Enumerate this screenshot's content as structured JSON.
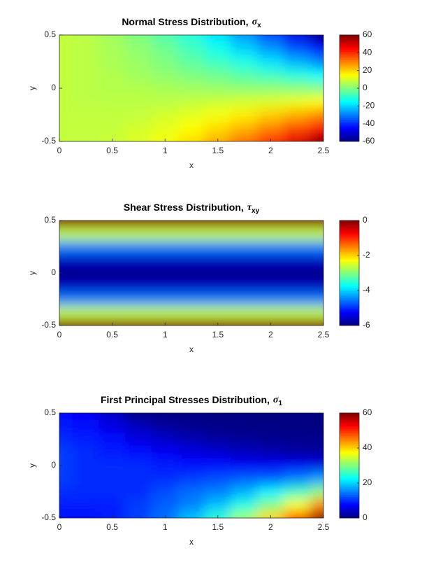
{
  "chart_data": [
    {
      "type": "heatmap",
      "title": "Normal Stress Distribution,",
      "title_symbol": "σ",
      "title_subscript": "x",
      "xlabel": "x",
      "ylabel": "y",
      "colormap": "jet",
      "x": [
        0,
        0.25,
        0.5,
        0.75,
        1,
        1.25,
        1.5,
        1.75,
        2,
        2.25,
        2.5
      ],
      "y": [
        -0.5,
        -0.375,
        -0.25,
        -0.125,
        0,
        0.125,
        0.25,
        0.375,
        0.5
      ],
      "z": [
        [
          8,
          8,
          9,
          11,
          14,
          19,
          25,
          32,
          40,
          49,
          60
        ],
        [
          8,
          8,
          8,
          10,
          12,
          15,
          19,
          24,
          30,
          37,
          45
        ],
        [
          8,
          8,
          8,
          8,
          10,
          12,
          14,
          17,
          21,
          25,
          30
        ],
        [
          8,
          7,
          7,
          7,
          7,
          8,
          9,
          10,
          11,
          13,
          15
        ],
        [
          8,
          7,
          6,
          6,
          5,
          4,
          3,
          2,
          2,
          1,
          0
        ],
        [
          8,
          7,
          6,
          4,
          2,
          0,
          -2,
          -5,
          -8,
          -11,
          -15
        ],
        [
          8,
          7,
          5,
          3,
          0,
          -4,
          -8,
          -12,
          -18,
          -24,
          -30
        ],
        [
          8,
          7,
          5,
          2,
          -2,
          -7,
          -13,
          -20,
          -27,
          -36,
          -45
        ],
        [
          8,
          7,
          4,
          0,
          -5,
          -11,
          -18,
          -27,
          -37,
          -48,
          -60
        ]
      ],
      "xlim": [
        0,
        2.5
      ],
      "ylim": [
        -0.5,
        0.5
      ],
      "xticks": [
        0,
        0.5,
        1,
        1.5,
        2,
        2.5
      ],
      "yticks": [
        -0.5,
        0,
        0.5
      ],
      "clim": [
        -60,
        60
      ],
      "cticks": [
        -60,
        -40,
        -20,
        0,
        20,
        40,
        60
      ]
    },
    {
      "type": "heatmap",
      "title": "Shear Stress Distribution,",
      "title_symbol": "τ",
      "title_subscript": "xy",
      "xlabel": "x",
      "ylabel": "y",
      "colormap": "jet",
      "x": [
        0,
        0.25,
        0.5,
        0.75,
        1,
        1.25,
        1.5,
        1.75,
        2,
        2.25,
        2.5
      ],
      "y": [
        -0.5,
        -0.375,
        -0.25,
        -0.125,
        0,
        0.125,
        0.25,
        0.375,
        0.5
      ],
      "z": [
        [
          0,
          0,
          0,
          0,
          0,
          0,
          0,
          0,
          0,
          0,
          0
        ],
        [
          -2.6,
          -2.6,
          -2.6,
          -2.6,
          -2.6,
          -2.6,
          -2.6,
          -2.6,
          -2.6,
          -2.6,
          -2.6
        ],
        [
          -4.5,
          -4.5,
          -4.5,
          -4.5,
          -4.5,
          -4.5,
          -4.5,
          -4.5,
          -4.5,
          -4.5,
          -4.5
        ],
        [
          -5.6,
          -5.6,
          -5.6,
          -5.6,
          -5.6,
          -5.6,
          -5.6,
          -5.6,
          -5.6,
          -5.6,
          -5.6
        ],
        [
          -6,
          -6,
          -6,
          -6,
          -6,
          -6,
          -6,
          -6,
          -6,
          -6,
          -6
        ],
        [
          -5.6,
          -5.6,
          -5.6,
          -5.6,
          -5.6,
          -5.6,
          -5.6,
          -5.6,
          -5.6,
          -5.6,
          -5.6
        ],
        [
          -4.5,
          -4.5,
          -4.5,
          -4.5,
          -4.5,
          -4.5,
          -4.5,
          -4.5,
          -4.5,
          -4.5,
          -4.5
        ],
        [
          -2.6,
          -2.6,
          -2.6,
          -2.6,
          -2.6,
          -2.6,
          -2.6,
          -2.6,
          -2.6,
          -2.6,
          -2.6
        ],
        [
          0,
          0,
          0,
          0,
          0,
          0,
          0,
          0,
          0,
          0,
          0
        ]
      ],
      "xlim": [
        0,
        2.5
      ],
      "ylim": [
        -0.5,
        0.5
      ],
      "xticks": [
        0,
        0.5,
        1,
        1.5,
        2,
        2.5
      ],
      "yticks": [
        -0.5,
        0,
        0.5
      ],
      "clim": [
        -6,
        0
      ],
      "cticks": [
        -6,
        -4,
        -2,
        0
      ]
    },
    {
      "type": "heatmap",
      "title": "First Principal Stresses Distribution,",
      "title_symbol": "σ",
      "title_subscript": "1",
      "xlabel": "x",
      "ylabel": "y",
      "colormap": "jet",
      "x": [
        0,
        0.25,
        0.5,
        0.75,
        1,
        1.25,
        1.5,
        1.75,
        2,
        2.25,
        2.5
      ],
      "y": [
        -0.5,
        -0.375,
        -0.25,
        -0.125,
        0,
        0.125,
        0.25,
        0.375,
        0.5
      ],
      "z": [
        [
          8,
          8,
          9,
          11,
          14,
          19,
          25,
          32,
          40,
          49,
          60
        ],
        [
          9,
          9,
          9,
          11,
          13,
          15,
          19,
          24,
          30,
          37,
          45
        ],
        [
          10,
          10,
          10,
          10,
          12,
          14,
          15,
          18,
          22,
          26,
          31
        ],
        [
          11,
          10,
          10,
          10,
          10,
          11,
          12,
          13,
          13,
          15,
          17
        ],
        [
          11,
          10,
          10,
          10,
          9,
          8,
          8,
          7,
          7,
          7,
          6
        ],
        [
          11,
          10,
          9,
          8,
          7,
          6,
          5,
          4,
          3,
          2,
          2
        ],
        [
          10,
          9,
          8,
          6,
          4.5,
          3,
          2,
          1.5,
          1.1,
          0.8,
          0.7
        ],
        [
          8.8,
          7.9,
          6.1,
          3.8,
          1.8,
          0.9,
          0.5,
          0.3,
          0.2,
          0.2,
          0.1
        ],
        [
          8,
          7,
          4,
          0,
          0,
          0,
          0,
          0,
          0,
          0,
          0
        ]
      ],
      "xlim": [
        0,
        2.5
      ],
      "ylim": [
        -0.5,
        0.5
      ],
      "xticks": [
        0,
        0.5,
        1,
        1.5,
        2,
        2.5
      ],
      "yticks": [
        -0.5,
        0,
        0.5
      ],
      "clim": [
        0,
        60
      ],
      "cticks": [
        0,
        20,
        40,
        60
      ]
    }
  ]
}
